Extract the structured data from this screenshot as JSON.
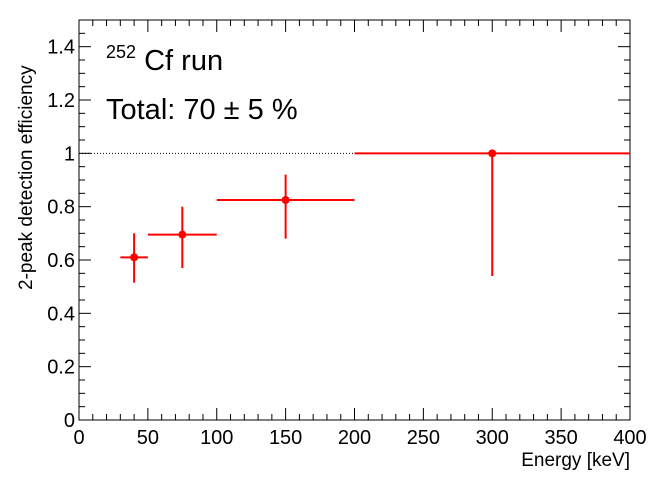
{
  "chart_data": {
    "type": "scatter",
    "xlabel": "Energy [keV]",
    "ylabel": "2-peak detection efficiency",
    "xlim": [
      0,
      400
    ],
    "ylim": [
      0,
      1.5
    ],
    "x_ticks": [
      "0",
      "50",
      "100",
      "150",
      "200",
      "250",
      "300",
      "350",
      "400"
    ],
    "y_ticks": [
      "0",
      "0.2",
      "0.4",
      "0.6",
      "0.8",
      "1",
      "1.2",
      "1.4"
    ],
    "annotations": {
      "run_prefix": "252",
      "run_label": "Cf run",
      "total": "Total: 70 ± 5 %"
    },
    "reference_line": {
      "y": 1,
      "style": "dotted",
      "color": "#000000"
    },
    "series": [
      {
        "color": "#ff0000",
        "points": [
          {
            "x": 40,
            "y": 0.61,
            "x_lo": 30,
            "x_hi": 50,
            "y_lo": 0.515,
            "y_hi": 0.7
          },
          {
            "x": 75,
            "y": 0.695,
            "x_lo": 50,
            "x_hi": 100,
            "y_lo": 0.57,
            "y_hi": 0.8
          },
          {
            "x": 150,
            "y": 0.825,
            "x_lo": 100,
            "x_hi": 200,
            "y_lo": 0.68,
            "y_hi": 0.92
          },
          {
            "x": 300,
            "y": 1.0,
            "x_lo": 200,
            "x_hi": 400,
            "y_lo": 0.54,
            "y_hi": 1.0
          }
        ]
      }
    ],
    "grid": false,
    "legend": "none"
  }
}
